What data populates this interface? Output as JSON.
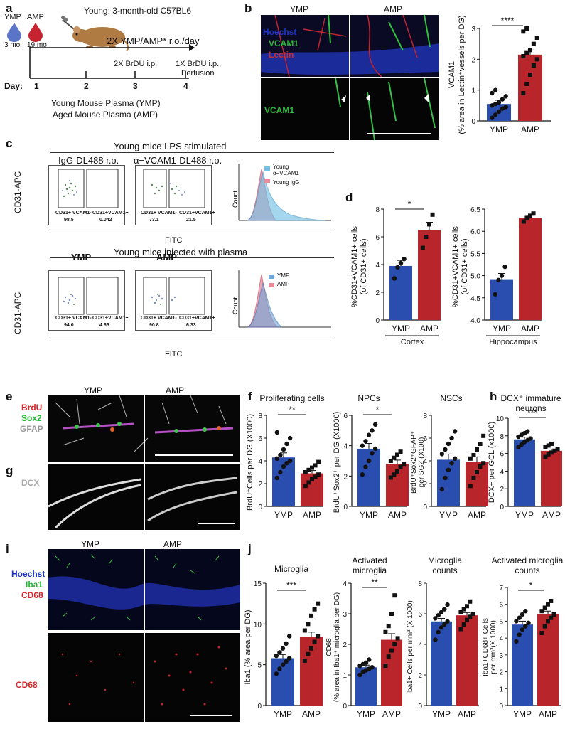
{
  "colors": {
    "ymp": "#2a4db0",
    "amp": "#b8262b",
    "ymp_drop": "#4a6fc4",
    "amp_drop": "#c9262f"
  },
  "panel_a": {
    "label": "a",
    "ymp": "YMP",
    "amp": "AMP",
    "ymp_age": "3 mo",
    "amp_age": "19 mo",
    "young": "Young: 3-month-old C57BL6",
    "treat": "2X YMP/AMP* r.o./day",
    "brdu2": "2X BrDU i.p.",
    "brdu1_1": "1X BrDU i.p.,",
    "brdu1_2": "Perfusion",
    "day": "Day:",
    "d1": "1",
    "d2": "2",
    "d3": "3",
    "d4": "4",
    "leg1": "Young Mouse Plasma (YMP)",
    "leg2": "Aged Mouse Plasma (AMP)"
  },
  "panel_b": {
    "label": "b",
    "col1": "YMP",
    "col2": "AMP",
    "hoechst": "Hoechst",
    "vcam1": "VCAM1",
    "lectin": "Lectin",
    "vcam1_2": "VCAM1",
    "ylabel1": "VCAM1",
    "ylabel2": "(% area in Lectin⁺vessels per DG)",
    "sig": "****"
  },
  "panel_c": {
    "label": "c",
    "title1": "Young mice LPS stimulated",
    "title2": "Young mice injected with plasma",
    "igg": "IgG-DL488 r.o.",
    "avcam": "α−VCAM1-DL488 r.o.",
    "ymp": "YMP",
    "amp": "AMP",
    "ylab": "CD31-APC",
    "xlab": "FITC",
    "count": "Count",
    "g1a": "CD31+ VCAM1-",
    "g1b": "CD31+VCAM1+",
    "v1a": "98.5",
    "v1b": "0.042",
    "g2a": "CD31+ VCAM1-",
    "g2b": "CD31+VCAM1+",
    "v2a": "73.1",
    "v2b": "21.5",
    "g3a": "CD31+ VCAM1-",
    "g3b": "CD31+VCAM1+",
    "v3a": "94.0",
    "v3b": "4.66",
    "g4a": "CD31+ VCAM1-",
    "g4b": "CD31+VCAM1+",
    "v4a": "90.8",
    "v4b": "6.33",
    "leg_young1": "Young",
    "leg_young2": "α−VCAM1",
    "leg_igg": "Young IgG",
    "leg_ymp": "YMP",
    "leg_amp": "AMP"
  },
  "panel_d": {
    "label": "d",
    "ylab1": "%CD31+VCAM1+ cells",
    "ylab2": "(of CD31+ cells)",
    "cortex": "Cortex",
    "hippo": "Hippocampus",
    "sig": "*"
  },
  "panel_e": {
    "label": "e",
    "ymp": "YMP",
    "amp": "AMP",
    "brdu": "BrdU",
    "sox2": "Sox2",
    "gfap": "GFAP"
  },
  "panel_f": {
    "label": "f",
    "t1": "Proliferating cells",
    "t2": "NPCs",
    "t3": "NSCs",
    "y1": "BrdU⁺Cells per DG (X1000)",
    "y2": "BrdU⁺Sox2⁺ per DG (X1000)",
    "y3a": "BrdU⁺Sox2⁺GFAP⁺",
    "y3b": "per SGZ (X100)",
    "s1": "**",
    "s2": "*"
  },
  "panel_g": {
    "label": "g",
    "dcx": "DCX"
  },
  "panel_h": {
    "label": "h",
    "t1": "DCX⁺ immature",
    "t2": "neurons",
    "ylab": "DCX+ per GCL (x1000)",
    "sig": "***"
  },
  "panel_i": {
    "label": "i",
    "ymp": "YMP",
    "amp": "AMP",
    "hoechst": "Hoechst",
    "iba1": "Iba1",
    "cd68": "CD68",
    "cd68b": "CD68"
  },
  "panel_j": {
    "label": "j",
    "t1": "Microglia",
    "t2a": "Activated",
    "t2b": "microglia",
    "t3a": "Microglia",
    "t3b": "counts",
    "t4a": "Activated microglia",
    "t4b": "counts",
    "y1": "Iba1 (% area per DG)",
    "y2a": "CD68",
    "y2b": "(% area in Iba1⁺ microglia per DG)",
    "y3": "Iba1+ Cells per mm³ (X 1000)",
    "y4a": "Iba1+CD68+ Cells",
    "y4b": "per mm³(X 1000)",
    "s1": "***",
    "s2": "**",
    "s4": "*"
  },
  "xcats": [
    "YMP",
    "AMP"
  ],
  "chart_data": [
    {
      "id": "b",
      "type": "bar",
      "categories": [
        "YMP",
        "AMP"
      ],
      "values": [
        0.55,
        2.15
      ],
      "errors": [
        0.12,
        0.15
      ],
      "ylim": [
        0,
        3
      ],
      "yticks": [
        0,
        1,
        2,
        3
      ],
      "points": [
        [
          0.1,
          0.2,
          0.3,
          0.4,
          0.45,
          0.5,
          0.55,
          0.6,
          0.7,
          0.8,
          0.9,
          1.0
        ],
        [
          0.9,
          1.2,
          1.5,
          1.8,
          2.0,
          2.1,
          2.2,
          2.3,
          2.5,
          2.7,
          2.9,
          3.0
        ]
      ]
    },
    {
      "id": "d1",
      "type": "bar",
      "categories": [
        "YMP",
        "AMP"
      ],
      "values": [
        3.9,
        6.5
      ],
      "errors": [
        0.4,
        0.55
      ],
      "ylim": [
        0,
        8
      ],
      "yticks": [
        0,
        2,
        4,
        6,
        8
      ],
      "points": [
        [
          3.0,
          3.8,
          4.1,
          4.4
        ],
        [
          5.2,
          6.0,
          6.9,
          7.6
        ]
      ]
    },
    {
      "id": "d2",
      "type": "bar",
      "categories": [
        "YMP",
        "AMP"
      ],
      "values": [
        4.92,
        6.3
      ],
      "errors": [
        0.13,
        0.06
      ],
      "ylim": [
        4.0,
        6.5
      ],
      "yticks": [
        4.0,
        4.5,
        5.0,
        5.5,
        6.0,
        6.5
      ],
      "points": [
        [
          4.58,
          4.9,
          5.0,
          5.2
        ],
        [
          6.22,
          6.3,
          6.35,
          6.4
        ]
      ]
    },
    {
      "id": "f1",
      "type": "bar",
      "categories": [
        "YMP",
        "AMP"
      ],
      "values": [
        4.3,
        2.9
      ],
      "errors": [
        0.4,
        0.25
      ],
      "ylim": [
        0,
        8
      ],
      "yticks": [
        0,
        2,
        4,
        6,
        8
      ],
      "points": [
        [
          2.5,
          3.0,
          3.5,
          3.8,
          4.0,
          4.2,
          4.5,
          5.0,
          5.5,
          6.0,
          6.5
        ],
        [
          1.8,
          2.1,
          2.4,
          2.6,
          2.8,
          3.0,
          3.2,
          3.4,
          3.6,
          3.9
        ]
      ]
    },
    {
      "id": "f2",
      "type": "bar",
      "categories": [
        "YMP",
        "AMP"
      ],
      "values": [
        3.8,
        2.8
      ],
      "errors": [
        0.35,
        0.25
      ],
      "ylim": [
        0,
        6
      ],
      "yticks": [
        0,
        2,
        4,
        6
      ],
      "points": [
        [
          2.1,
          2.6,
          3.0,
          3.5,
          3.8,
          4.0,
          4.3,
          4.7,
          5.0,
          5.4
        ],
        [
          1.9,
          2.1,
          2.3,
          2.6,
          2.8,
          3.0,
          3.2,
          3.4,
          3.6
        ]
      ]
    },
    {
      "id": "f3",
      "type": "bar",
      "categories": [
        "YMP",
        "AMP"
      ],
      "values": [
        4.1,
        3.9
      ],
      "errors": [
        0.5,
        0.45
      ],
      "ylim": [
        0,
        8
      ],
      "yticks": [
        0,
        2,
        4,
        6,
        8
      ],
      "points": [
        [
          1.5,
          2.5,
          3.2,
          3.8,
          4.2,
          4.6,
          5.0,
          5.5,
          6.0,
          6.6
        ],
        [
          1.8,
          2.5,
          3.0,
          3.5,
          3.8,
          4.2,
          4.5,
          5.0,
          5.5,
          6.2
        ]
      ]
    },
    {
      "id": "h",
      "type": "bar",
      "categories": [
        "YMP",
        "AMP"
      ],
      "values": [
        7.6,
        6.3
      ],
      "errors": [
        0.25,
        0.2
      ],
      "ylim": [
        0,
        10
      ],
      "yticks": [
        0,
        2,
        4,
        6,
        8,
        10
      ],
      "points": [
        [
          6.7,
          7.0,
          7.3,
          7.5,
          7.7,
          7.9,
          8.1,
          8.3,
          8.5
        ],
        [
          5.6,
          5.9,
          6.1,
          6.3,
          6.5,
          6.7,
          6.9,
          7.1
        ]
      ]
    },
    {
      "id": "j1",
      "type": "bar",
      "categories": [
        "YMP",
        "AMP"
      ],
      "values": [
        5.8,
        8.4
      ],
      "errors": [
        0.45,
        0.6
      ],
      "ylim": [
        0,
        15
      ],
      "yticks": [
        0,
        5,
        10,
        15
      ],
      "points": [
        [
          3.9,
          4.5,
          5.0,
          5.4,
          5.8,
          6.1,
          6.5,
          7.0,
          7.6,
          8.5
        ],
        [
          5.5,
          6.3,
          7.0,
          7.8,
          8.5,
          9.2,
          10.0,
          11.0,
          11.8,
          12.5
        ]
      ]
    },
    {
      "id": "j2",
      "type": "bar",
      "categories": [
        "YMP",
        "AMP"
      ],
      "values": [
        1.25,
        2.15
      ],
      "errors": [
        0.07,
        0.2
      ],
      "ylim": [
        0,
        4
      ],
      "yticks": [
        0,
        1,
        2,
        3,
        4
      ],
      "points": [
        [
          1.0,
          1.1,
          1.15,
          1.2,
          1.25,
          1.3,
          1.35,
          1.4,
          1.5
        ],
        [
          1.3,
          1.6,
          1.8,
          2.0,
          2.2,
          2.4,
          2.6,
          3.0,
          3.6
        ]
      ]
    },
    {
      "id": "j3",
      "type": "bar",
      "categories": [
        "YMP",
        "AMP"
      ],
      "values": [
        5.5,
        5.9
      ],
      "errors": [
        0.2,
        0.18
      ],
      "ylim": [
        0,
        8
      ],
      "yticks": [
        0,
        2,
        4,
        6,
        8
      ],
      "points": [
        [
          4.3,
          4.8,
          5.1,
          5.3,
          5.5,
          5.7,
          5.9,
          6.1,
          6.3,
          6.6
        ],
        [
          5.0,
          5.3,
          5.6,
          5.8,
          6.0,
          6.1,
          6.3,
          6.5,
          6.8
        ]
      ]
    },
    {
      "id": "j4",
      "type": "bar",
      "categories": [
        "YMP",
        "AMP"
      ],
      "values": [
        4.8,
        5.4
      ],
      "errors": [
        0.2,
        0.2
      ],
      "ylim": [
        0,
        7
      ],
      "yticks": [
        0,
        1,
        2,
        3,
        4,
        5,
        6,
        7
      ],
      "points": [
        [
          3.8,
          4.2,
          4.5,
          4.7,
          4.9,
          5.0,
          5.2,
          5.4,
          5.6
        ],
        [
          4.3,
          4.7,
          5.0,
          5.2,
          5.4,
          5.6,
          5.8,
          6.0,
          6.2
        ]
      ]
    }
  ]
}
